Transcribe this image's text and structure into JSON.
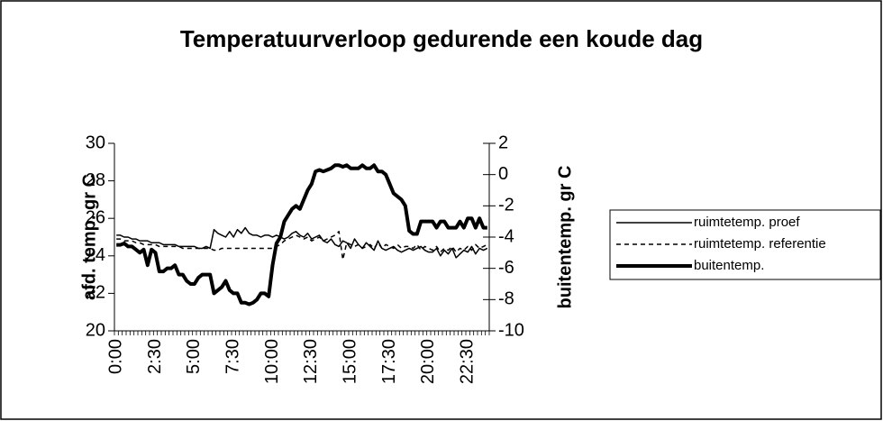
{
  "chart_data": {
    "type": "line",
    "title": "Temperatuurverloop gedurende een koude dag",
    "ylabel": "afd. temp. gr C",
    "y2label": "buitentemp. gr C",
    "categories": [
      "0:00",
      null,
      null,
      null,
      null,
      null,
      null,
      null,
      null,
      null,
      "2:30",
      null,
      null,
      null,
      null,
      null,
      null,
      null,
      null,
      null,
      "5:00",
      null,
      null,
      null,
      null,
      null,
      null,
      null,
      null,
      null,
      "7:30",
      null,
      null,
      null,
      null,
      null,
      null,
      null,
      null,
      null,
      "10:00",
      null,
      null,
      null,
      null,
      null,
      null,
      null,
      null,
      null,
      "12:30",
      null,
      null,
      null,
      null,
      null,
      null,
      null,
      null,
      null,
      "15:00",
      null,
      null,
      null,
      null,
      null,
      null,
      null,
      null,
      null,
      "17:30",
      null,
      null,
      null,
      null,
      null,
      null,
      null,
      null,
      null,
      "20:00",
      null,
      null,
      null,
      null,
      null,
      null,
      null,
      null,
      null,
      "22:30",
      null,
      null,
      null,
      null,
      null
    ],
    "series": [
      {
        "name": "ruimtetemp. proef",
        "color": "#000000",
        "style": "solid",
        "width": 1.5,
        "values": [
          25.1,
          25.1,
          25.0,
          25.0,
          24.9,
          24.9,
          24.8,
          24.8,
          24.8,
          24.7,
          24.7,
          24.7,
          24.6,
          24.6,
          24.6,
          24.6,
          24.5,
          24.5,
          24.5,
          24.5,
          24.5,
          24.4,
          24.4,
          24.5,
          24.4,
          25.4,
          25.2,
          25.1,
          25.0,
          25.3,
          25.0,
          25.4,
          25.2,
          25.5,
          25.2,
          25.1,
          25.1,
          25.0,
          25.1,
          25.1,
          25.0,
          25.1,
          25.0,
          24.9,
          25.0,
          25.2,
          25.3,
          25.1,
          25.0,
          25.2,
          24.9,
          25.0,
          25.1,
          24.8,
          24.7,
          24.9,
          24.6,
          24.5,
          24.8,
          24.7,
          24.4,
          24.9,
          24.6,
          24.4,
          24.7,
          24.5,
          24.3,
          24.8,
          24.4,
          24.3,
          24.4,
          24.5,
          24.3,
          24.2,
          24.3,
          24.4,
          24.3,
          24.4,
          24.5,
          24.3,
          24.2,
          24.2,
          24.4,
          24.0,
          24.3,
          24.1,
          24.4,
          23.9,
          24.1,
          24.3,
          24.2,
          24.5,
          24.1,
          24.4,
          24.3,
          24.4
        ]
      },
      {
        "name": "ruimtetemp. referentie",
        "color": "#000000",
        "style": "dashed",
        "width": 1.5,
        "values": [
          24.9,
          24.9,
          24.8,
          24.8,
          24.8,
          24.7,
          24.7,
          24.6,
          24.6,
          24.6,
          24.6,
          24.5,
          24.5,
          24.5,
          24.5,
          24.5,
          24.5,
          24.4,
          24.4,
          24.4,
          24.4,
          24.4,
          24.4,
          24.4,
          24.4,
          24.3,
          24.3,
          24.4,
          24.4,
          24.4,
          24.4,
          24.4,
          24.4,
          24.4,
          24.4,
          24.4,
          24.4,
          24.4,
          24.4,
          24.4,
          24.4,
          24.5,
          24.6,
          24.8,
          24.9,
          25.0,
          25.1,
          25.0,
          24.9,
          25.0,
          24.8,
          24.9,
          25.0,
          24.8,
          24.9,
          25.0,
          25.1,
          25.3,
          23.8,
          24.7,
          24.6,
          24.5,
          24.6,
          24.4,
          24.5,
          24.6,
          24.4,
          24.7,
          24.4,
          24.6,
          24.5,
          24.4,
          24.6,
          24.4,
          24.5,
          24.5,
          24.4,
          24.6,
          24.3,
          24.5,
          24.4,
          24.3,
          24.5,
          24.2,
          24.4,
          24.3,
          24.5,
          24.2,
          24.4,
          24.3,
          24.5,
          24.3,
          24.6,
          24.4,
          24.5,
          24.6
        ]
      },
      {
        "name": "buitentemp.",
        "color": "#000000",
        "style": "solid",
        "width": 4,
        "axis": "y2",
        "values": [
          -4.5,
          -4.5,
          -4.4,
          -4.6,
          -4.6,
          -4.8,
          -5.0,
          -4.8,
          -5.8,
          -4.8,
          -5.0,
          -6.2,
          -6.2,
          -6.0,
          -6.0,
          -5.8,
          -6.4,
          -6.4,
          -6.8,
          -7.0,
          -7.0,
          -6.6,
          -6.4,
          -6.4,
          -6.4,
          -7.6,
          -7.4,
          -7.2,
          -6.8,
          -7.4,
          -7.6,
          -7.6,
          -8.2,
          -8.2,
          -8.3,
          -8.2,
          -8.0,
          -7.6,
          -7.6,
          -7.8,
          -5.8,
          -4.4,
          -4.0,
          -3.0,
          -2.6,
          -2.2,
          -2.0,
          -2.2,
          -1.6,
          -1.0,
          -0.6,
          0.2,
          0.3,
          0.2,
          0.3,
          0.4,
          0.6,
          0.6,
          0.5,
          0.6,
          0.4,
          0.4,
          0.4,
          0.6,
          0.4,
          0.4,
          0.6,
          0.2,
          0.2,
          0.0,
          -0.6,
          -1.2,
          -1.4,
          -1.6,
          -2.0,
          -3.6,
          -3.8,
          -3.8,
          -3.0,
          -3.0,
          -3.0,
          -3.0,
          -3.4,
          -3.0,
          -3.0,
          -3.4,
          -3.4,
          -3.4,
          -3.0,
          -3.4,
          -2.8,
          -2.8,
          -3.4,
          -2.8,
          -3.4,
          -3.4
        ]
      }
    ],
    "ylim": [
      20,
      30
    ],
    "yticks": [
      20,
      22,
      24,
      26,
      28,
      30
    ],
    "y2lim": [
      -10,
      2
    ],
    "y2ticks": [
      -10,
      -8,
      -6,
      -4,
      -2,
      0,
      2
    ],
    "grid": false,
    "legend": "right"
  }
}
